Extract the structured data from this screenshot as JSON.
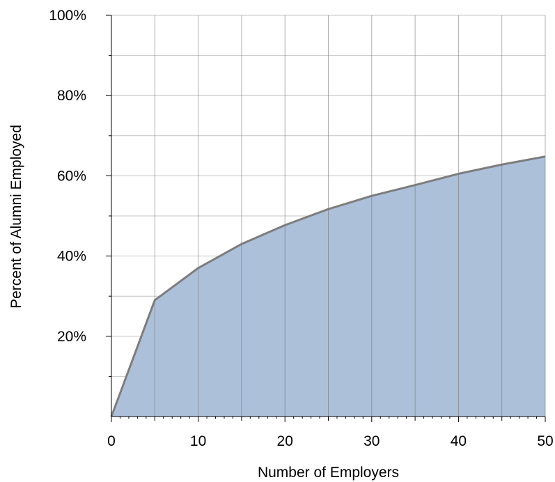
{
  "chart_data": {
    "type": "area",
    "title": "",
    "xlabel": "Number of Employers",
    "ylabel": "Percent of Alumni Employed",
    "x": [
      0,
      5,
      10,
      15,
      20,
      25,
      30,
      35,
      40,
      45,
      50
    ],
    "series": [
      {
        "values": [
          0,
          29,
          37,
          43,
          47.7,
          51.7,
          55,
          57.7,
          60.5,
          62.8,
          64.8
        ],
        "fill": "#adc0da",
        "line": "#7d7d7d"
      }
    ],
    "xlim": [
      0,
      50
    ],
    "ylim": [
      0,
      100
    ],
    "xticks": [
      0,
      10,
      20,
      30,
      40,
      50
    ],
    "xtick_labels": [
      "0",
      "10",
      "20",
      "30",
      "40",
      "50"
    ],
    "yticks": [
      20,
      40,
      60,
      80,
      100
    ],
    "ytick_labels": [
      "20%",
      "40%",
      "60%",
      "80%",
      "100%"
    ],
    "grid": true,
    "legend": "none"
  }
}
